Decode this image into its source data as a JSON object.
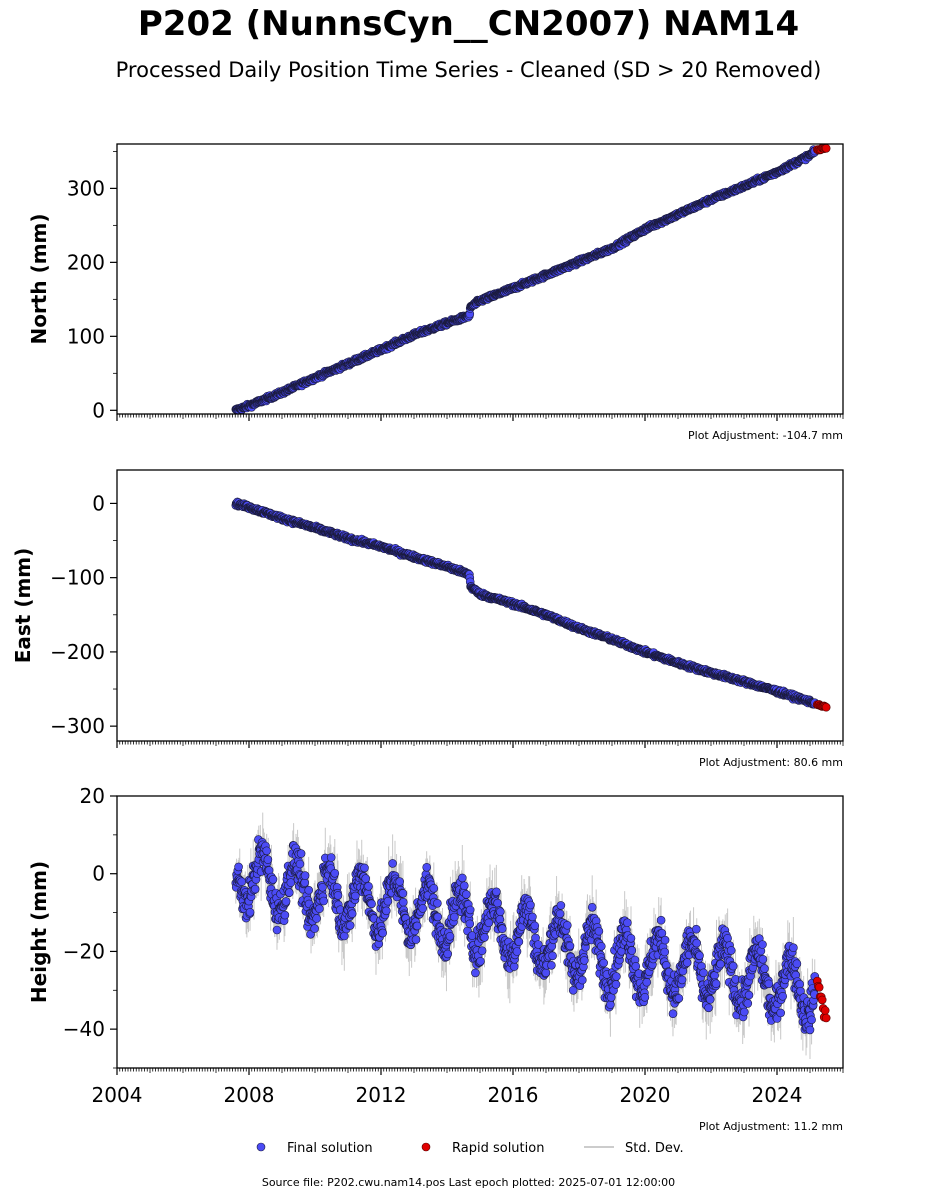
{
  "figure": {
    "title": "P202 (NunnsCyn__CN2007) NAM14",
    "subtitle": "Processed Daily Position Time Series - Cleaned (SD > 20 Removed)",
    "footer": "Source file: P202.cwu.nam14.pos  Last epoch plotted: 2025-07-01 12:00:00"
  },
  "colors": {
    "final": "#4b4bf5",
    "rapid": "#e00000",
    "stddev": "#bbbbbb",
    "marker_edge": "#1a1a3a"
  },
  "legend": [
    "Final solution",
    "Rapid solution",
    "Std. Dev."
  ],
  "chart_data": [
    {
      "type": "scatter",
      "ylabel": "North (mm)",
      "xlim": [
        2004.0,
        2026.0
      ],
      "ylim": [
        -5,
        360
      ],
      "yticks": [
        0,
        100,
        200,
        300
      ],
      "ytick_labels": [
        "0",
        "100",
        "200",
        "300"
      ],
      "xticks": [
        2004,
        2008,
        2012,
        2016,
        2020,
        2024
      ],
      "xtick_labels": [],
      "adjustment": "Plot Adjustment: -104.7 mm",
      "series": [
        {
          "name": "Final solution",
          "kind": "final",
          "trend": [
            [
              2007.6,
              0
            ],
            [
              2008.0,
              6
            ],
            [
              2009.0,
              24
            ],
            [
              2010.0,
              44
            ],
            [
              2011.0,
              63
            ],
            [
              2012.0,
              82
            ],
            [
              2013.0,
              102
            ],
            [
              2014.0,
              118
            ],
            [
              2014.68,
              128
            ],
            [
              2014.72,
              140
            ],
            [
              2015.0,
              148
            ],
            [
              2016.0,
              165
            ],
            [
              2017.0,
              183
            ],
            [
              2018.0,
              201
            ],
            [
              2019.0,
              219
            ],
            [
              2020.0,
              245
            ],
            [
              2021.0,
              265
            ],
            [
              2022.0,
              285
            ],
            [
              2023.0,
              303
            ],
            [
              2024.0,
              322
            ],
            [
              2025.0,
              345
            ],
            [
              2025.15,
              350
            ]
          ],
          "spread": 2.5
        },
        {
          "name": "Rapid solution",
          "kind": "rapid",
          "trend": [
            [
              2025.22,
              352
            ],
            [
              2025.5,
              355
            ]
          ],
          "spread": 1.0
        }
      ]
    },
    {
      "type": "scatter",
      "ylabel": "East (mm)",
      "xlim": [
        2004.0,
        2026.0
      ],
      "ylim": [
        -320,
        45
      ],
      "yticks": [
        -300,
        -200,
        -100,
        0
      ],
      "ytick_labels": [
        "−300",
        "−200",
        "−100",
        "0"
      ],
      "xticks": [
        2004,
        2008,
        2012,
        2016,
        2020,
        2024
      ],
      "xtick_labels": [],
      "adjustment": "Plot Adjustment: 80.6 mm",
      "series": [
        {
          "name": "Final solution",
          "kind": "final",
          "trend": [
            [
              2007.6,
              0
            ],
            [
              2008.0,
              -5
            ],
            [
              2009.0,
              -20
            ],
            [
              2010.0,
              -33
            ],
            [
              2011.0,
              -47
            ],
            [
              2012.0,
              -58
            ],
            [
              2013.0,
              -72
            ],
            [
              2014.0,
              -85
            ],
            [
              2014.68,
              -96
            ],
            [
              2014.72,
              -112
            ],
            [
              2015.0,
              -122
            ],
            [
              2016.0,
              -135
            ],
            [
              2017.0,
              -150
            ],
            [
              2018.0,
              -168
            ],
            [
              2019.0,
              -183
            ],
            [
              2020.0,
              -200
            ],
            [
              2021.0,
              -215
            ],
            [
              2022.0,
              -228
            ],
            [
              2023.0,
              -240
            ],
            [
              2024.0,
              -253
            ],
            [
              2025.0,
              -267
            ],
            [
              2025.15,
              -270
            ]
          ],
          "spread": 2.5
        },
        {
          "name": "Rapid solution",
          "kind": "rapid",
          "trend": [
            [
              2025.22,
              -271
            ],
            [
              2025.5,
              -274
            ]
          ],
          "spread": 1.0
        }
      ]
    },
    {
      "type": "scatter",
      "ylabel": "Height (mm)",
      "xlim": [
        2004.0,
        2026.0
      ],
      "ylim": [
        -50,
        20
      ],
      "yticks": [
        -40,
        -20,
        0,
        20
      ],
      "ytick_labels": [
        "−40",
        "−20",
        "0",
        "20"
      ],
      "xticks": [
        2004,
        2008,
        2012,
        2016,
        2020,
        2024
      ],
      "xtick_labels": [
        "2004",
        "2008",
        "2012",
        "2016",
        "2020",
        "2024"
      ],
      "adjustment": "Plot Adjustment: 11.2 mm",
      "series": [
        {
          "name": "Final solution",
          "kind": "final",
          "trend": [
            [
              2007.6,
              0
            ],
            [
              2010.0,
              -5
            ],
            [
              2013.0,
              -9
            ],
            [
              2016.0,
              -15
            ],
            [
              2019.0,
              -22
            ],
            [
              2022.0,
              -25
            ],
            [
              2025.15,
              -30
            ]
          ],
          "seasonal_amplitude": 7,
          "spread": 4.5
        },
        {
          "name": "Rapid solution",
          "kind": "rapid",
          "trend": [
            [
              2025.22,
              -27
            ],
            [
              2025.5,
              -38
            ]
          ],
          "spread": 0
        }
      ]
    }
  ]
}
